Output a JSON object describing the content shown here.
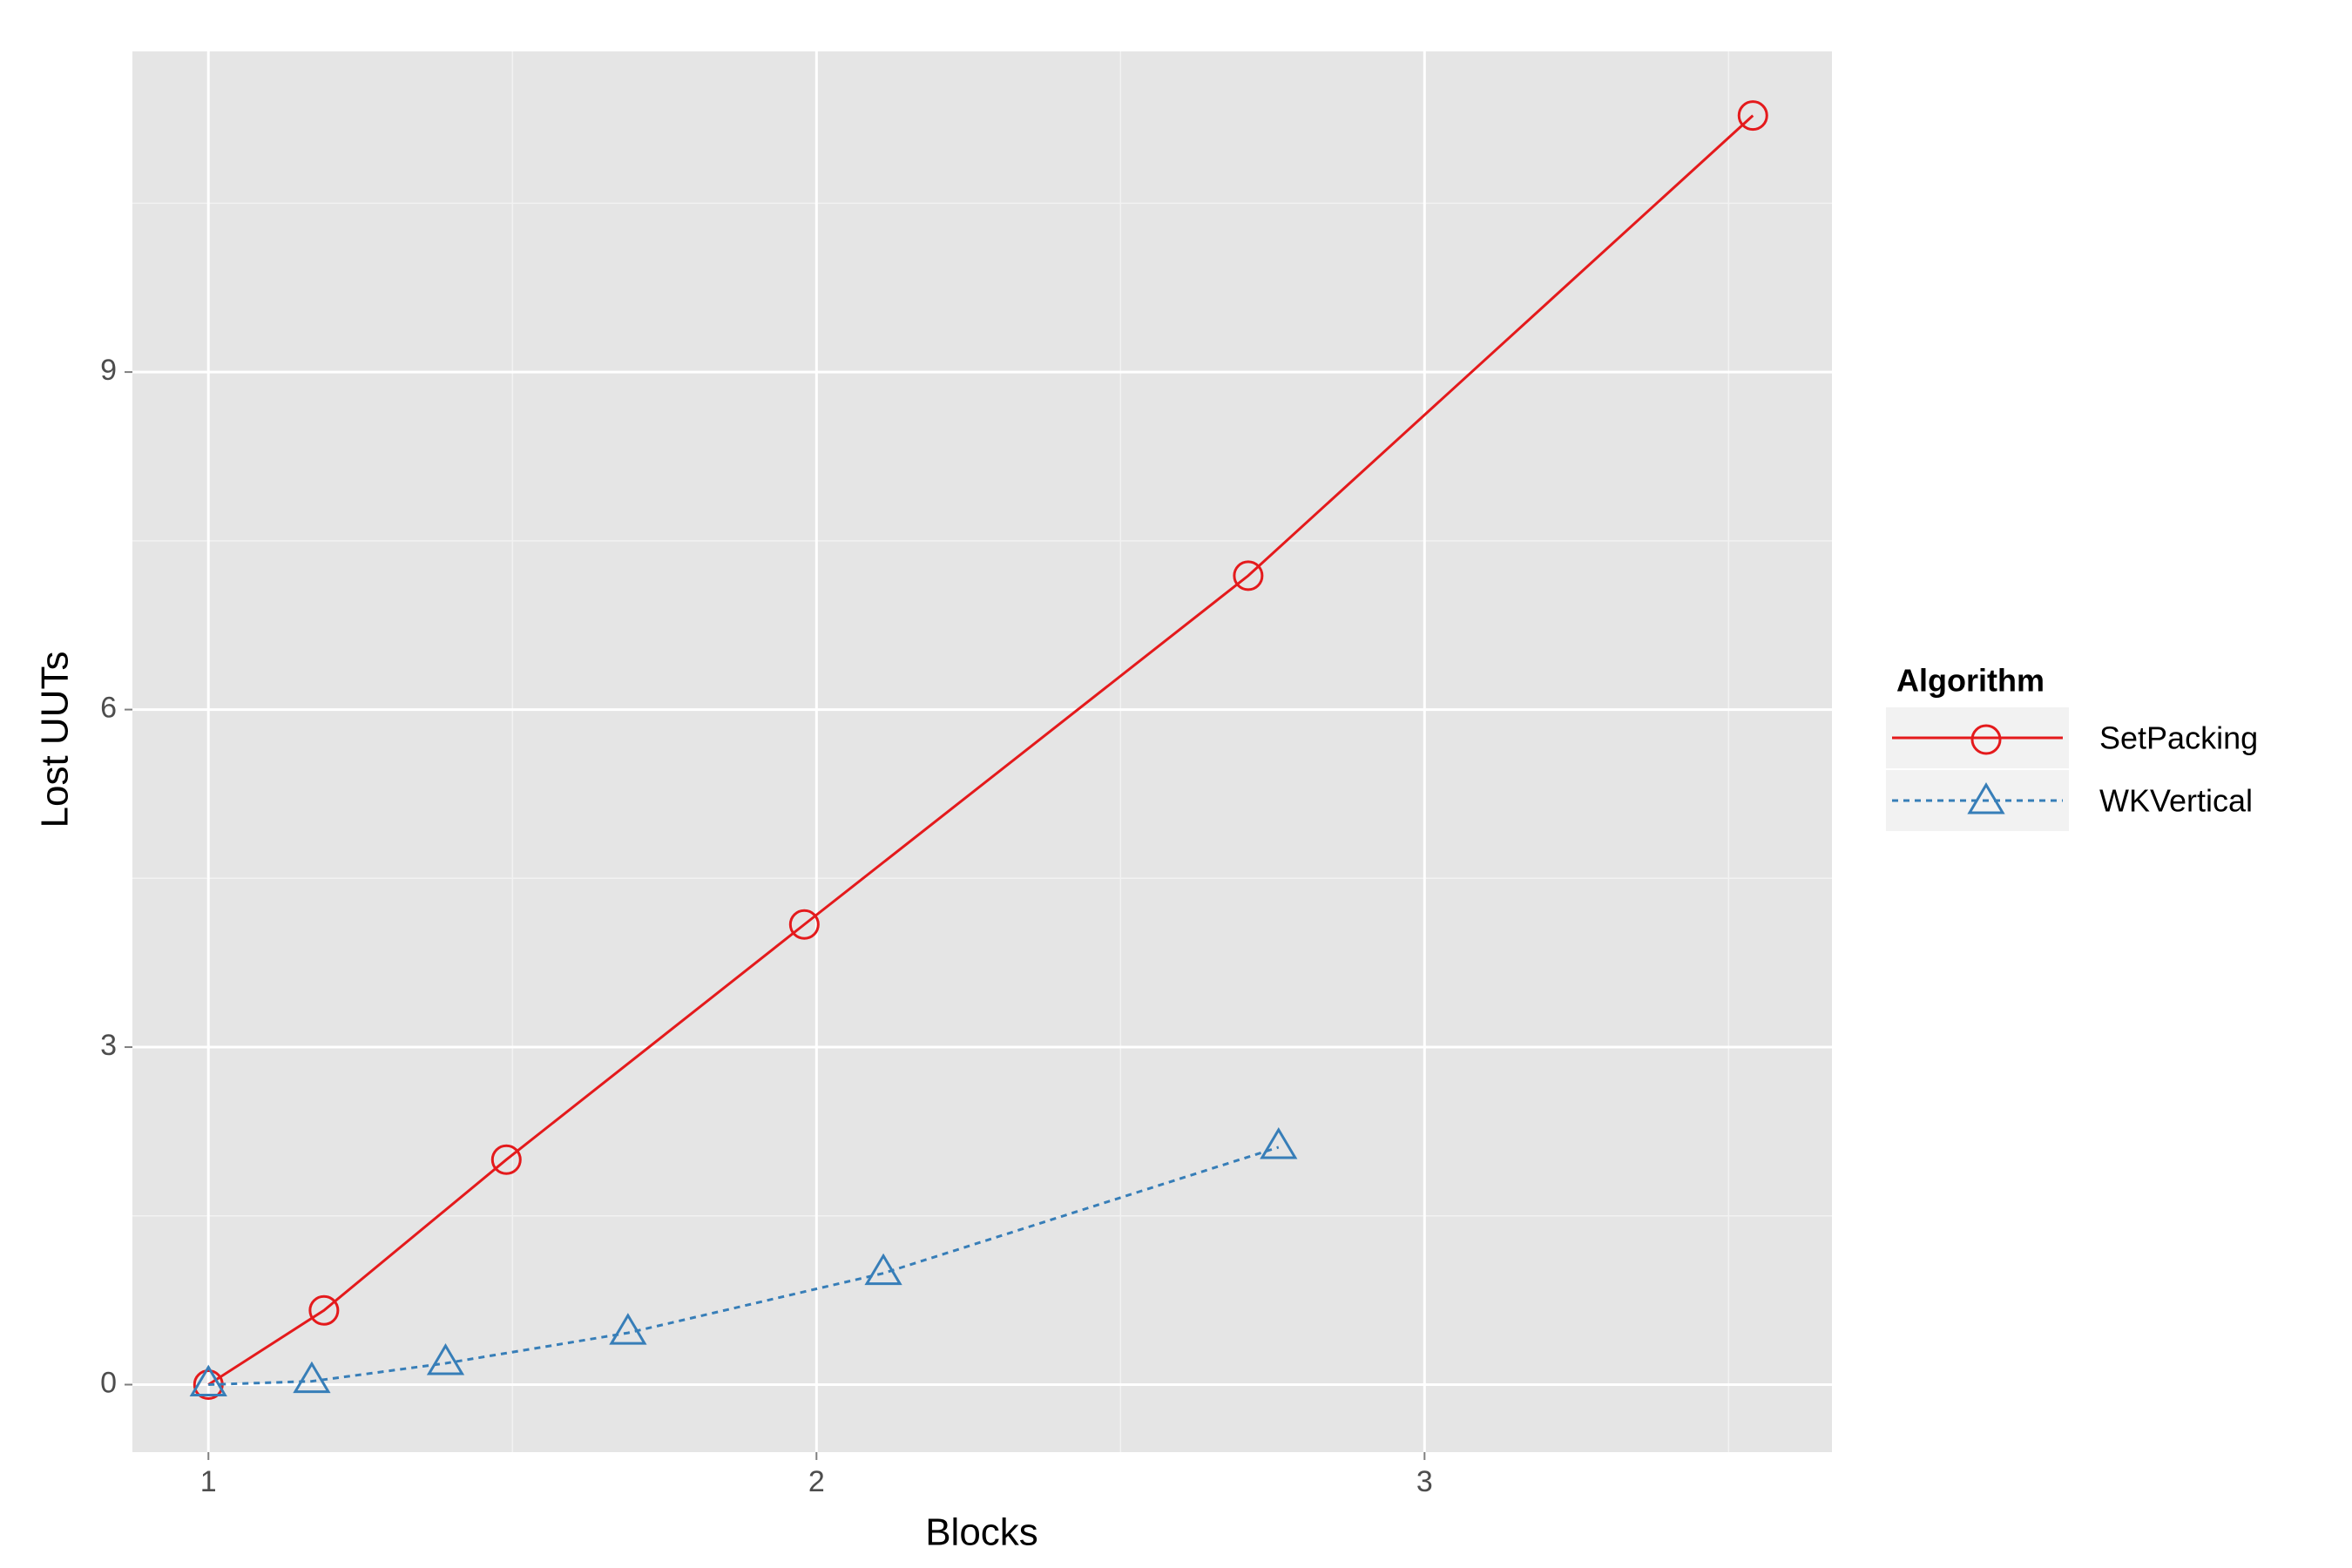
{
  "chart_data": {
    "type": "line",
    "xlabel": "Blocks",
    "ylabel": "Lost UUTs",
    "legend_title": "Algorithm",
    "legend": "right",
    "grid": true,
    "background": "#e5e5e5",
    "xlim": [
      0.875,
      3.67
    ],
    "ylim": [
      -0.6,
      11.85
    ],
    "xticks": [
      1,
      2,
      3
    ],
    "yticks": [
      0,
      3,
      6,
      9
    ],
    "xminor": [
      1.5,
      2.5,
      3.5
    ],
    "yminor": [
      1.5,
      4.5,
      7.5,
      10.5
    ],
    "series": [
      {
        "name": "SetPacking",
        "color": "#e41a1c",
        "linestyle": "solid",
        "marker": "circle",
        "x": [
          1,
          1.19,
          1.49,
          1.98,
          2.71,
          3.54
        ],
        "values": [
          0,
          0.66,
          2.0,
          4.09,
          7.19,
          11.28
        ]
      },
      {
        "name": "WKVertical",
        "color": "#377eb8",
        "linestyle": "dotted",
        "marker": "triangle",
        "x": [
          1,
          1.17,
          1.39,
          1.69,
          2.11,
          2.76
        ],
        "values": [
          0,
          0.03,
          0.19,
          0.46,
          0.99,
          2.11
        ]
      }
    ]
  }
}
